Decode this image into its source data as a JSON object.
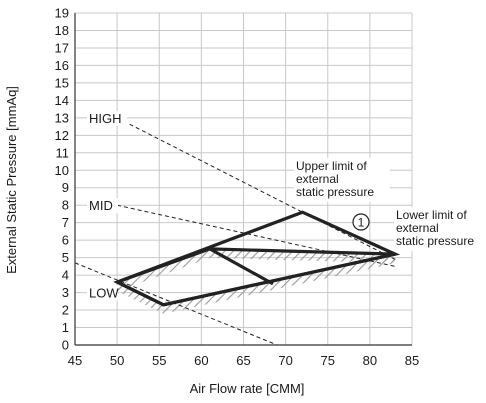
{
  "chart_data": {
    "type": "line",
    "xlabel": "Air Flow rate [CMM]",
    "ylabel": "External Static Pressure [mmAq]",
    "xlim": [
      45,
      85
    ],
    "ylim": [
      0,
      19
    ],
    "x_ticks": [
      45,
      50,
      55,
      60,
      65,
      70,
      75,
      80,
      85
    ],
    "y_ticks": [
      0,
      1,
      2,
      3,
      4,
      5,
      6,
      7,
      8,
      9,
      10,
      11,
      12,
      13,
      14,
      15,
      16,
      17,
      18,
      19
    ],
    "grid": true,
    "fan_curves": [
      {
        "label": "HIGH",
        "points": [
          [
            50,
            13
          ],
          [
            83,
            4.9
          ]
        ]
      },
      {
        "label": "MID",
        "points": [
          [
            50,
            8
          ],
          [
            83,
            4.5
          ]
        ]
      },
      {
        "label": "LOW",
        "points": [
          [
            45,
            4.7
          ],
          [
            69,
            0
          ]
        ]
      }
    ],
    "upper_limit_line": [
      [
        50,
        3.6
      ],
      [
        61,
        5.5
      ],
      [
        83,
        5.2
      ]
    ],
    "lower_limit_line": [
      [
        50,
        3.6
      ],
      [
        55.5,
        2.3
      ],
      [
        83,
        5.2
      ]
    ],
    "operating_envelope": [
      [
        50,
        3.6
      ],
      [
        72,
        7.6
      ],
      [
        83,
        5.2
      ],
      [
        55.5,
        2.3
      ]
    ],
    "mid_connector": [
      [
        61,
        5.5
      ],
      [
        68.5,
        3.5
      ]
    ],
    "annotations": [
      {
        "text": "Upper limit of external static pressure"
      },
      {
        "text": "Lower limit of external static pressure"
      },
      {
        "text": "1",
        "marker": "circled"
      }
    ],
    "colors": {
      "line": "#222222",
      "hatch": "#9a9a9a",
      "grid": "#c8c8c8"
    }
  }
}
